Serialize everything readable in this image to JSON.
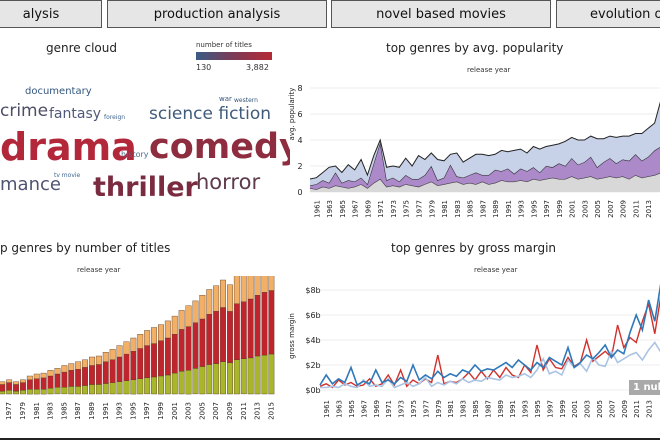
{
  "tabs": [
    "alysis",
    "production analysis",
    "novel based movies",
    "evolution of"
  ],
  "genre_cloud": {
    "title": "genre cloud",
    "legend_title": "number of titles",
    "legend_min": "130",
    "legend_max": "3,882",
    "words": [
      {
        "text": "drama",
        "color": "#b2273a"
      },
      {
        "text": "comedy",
        "color": "#8e2d3f"
      },
      {
        "text": "thriller",
        "color": "#7a2b40"
      },
      {
        "text": "horror",
        "color": "#5e3b4a"
      },
      {
        "text": "science fiction",
        "color": "#3f5a7a"
      },
      {
        "text": "crime",
        "color": "#4d4e66"
      },
      {
        "text": "fantasy",
        "color": "#50597a"
      },
      {
        "text": "mance",
        "color": "#4f5472"
      },
      {
        "text": "documentary",
        "color": "#33577f"
      },
      {
        "text": "history",
        "color": "#4a6a8a"
      },
      {
        "text": "war",
        "color": "#32557a"
      },
      {
        "text": "western",
        "color": "#32557a"
      },
      {
        "text": "foreign",
        "color": "#3e6590"
      },
      {
        "text": "tv movie",
        "color": "#3e6590"
      }
    ]
  },
  "popularity": {
    "title": "top genres by avg. popularity",
    "subtitle": "release year",
    "ylabel": "avg. popularity",
    "y_ticks": [
      "0",
      "2",
      "4",
      "6",
      "8"
    ],
    "x_ticks": [
      "1961",
      "1963",
      "1965",
      "1967",
      "1969",
      "1971",
      "1973",
      "1975",
      "1977",
      "1979",
      "1981",
      "1983",
      "1985",
      "1987",
      "1989",
      "1991",
      "1993",
      "1995",
      "1997",
      "1999",
      "2001",
      "2003",
      "2005",
      "2007",
      "2009",
      "2011",
      "2013"
    ]
  },
  "titles": {
    "title": "p genres by number of titles",
    "subtitle": "release year",
    "x_ticks": [
      "1973",
      "1975",
      "1977",
      "1979",
      "1981",
      "1983",
      "1985",
      "1987",
      "1989",
      "1991",
      "1993",
      "1995",
      "1997",
      "1999",
      "2001",
      "2003",
      "2005",
      "2007",
      "2009",
      "2011",
      "2013",
      "2015"
    ]
  },
  "gross": {
    "title": "top genres by gross margin",
    "subtitle": "release year",
    "ylabel": "gross margin",
    "y_ticks": [
      "$0b",
      "$2b",
      "$4b",
      "$6b",
      "$8b"
    ],
    "x_ticks": [
      "1961",
      "1963",
      "1965",
      "1967",
      "1969",
      "1971",
      "1973",
      "1975",
      "1977",
      "1979",
      "1981",
      "1983",
      "1985",
      "1987",
      "1989",
      "1991",
      "1993",
      "1995",
      "1997",
      "1999",
      "2001",
      "2003",
      "2005",
      "2007",
      "2009",
      "2011",
      "2013"
    ],
    "null_badge": "1 nul"
  },
  "chart_data": [
    {
      "type": "area",
      "title": "top genres by avg. popularity",
      "xlabel": "release year",
      "ylabel": "avg. popularity",
      "x": [
        1960,
        1961,
        1962,
        1963,
        1964,
        1965,
        1966,
        1967,
        1968,
        1969,
        1970,
        1971,
        1972,
        1973,
        1974,
        1975,
        1976,
        1977,
        1978,
        1979,
        1980,
        1981,
        1982,
        1983,
        1984,
        1985,
        1986,
        1987,
        1988,
        1989,
        1990,
        1991,
        1992,
        1993,
        1994,
        1995,
        1996,
        1997,
        1998,
        1999,
        2000,
        2001,
        2002,
        2003,
        2004,
        2005,
        2006,
        2007,
        2008,
        2009,
        2010,
        2011,
        2012,
        2013,
        2014,
        2015
      ],
      "ylim": [
        0,
        8
      ],
      "series": [
        {
          "values": [
            0.3,
            0.2,
            0.4,
            0.3,
            0.5,
            0.4,
            0.3,
            0.4,
            0.6,
            0.3,
            0.7,
            1.0,
            0.4,
            0.5,
            0.4,
            0.6,
            0.5,
            0.4,
            0.6,
            0.8,
            0.5,
            0.6,
            0.7,
            0.8,
            0.6,
            0.7,
            0.6,
            0.8,
            0.6,
            0.7,
            0.9,
            0.8,
            0.8,
            0.9,
            0.8,
            1.0,
            0.9,
            1.0,
            1.1,
            1.0,
            1.0,
            1.2,
            1.0,
            1.1,
            1.2,
            1.0,
            1.1,
            1.2,
            1.1,
            1.2,
            1.0,
            1.3,
            1.1,
            1.2,
            1.3,
            1.5
          ]
        },
        {
          "values": [
            0.2,
            0.4,
            0.5,
            0.4,
            1.0,
            0.3,
            0.6,
            0.4,
            0.5,
            0.3,
            1.5,
            2.8,
            0.5,
            0.6,
            0.4,
            0.7,
            0.5,
            0.6,
            0.7,
            1.2,
            0.4,
            0.5,
            1.4,
            0.4,
            0.5,
            0.6,
            0.9,
            0.5,
            0.7,
            1.0,
            0.7,
            1.0,
            0.6,
            0.9,
            0.8,
            0.9,
            0.6,
            1.0,
            0.8,
            1.2,
            1.0,
            1.4,
            1.1,
            1.2,
            1.5,
            0.9,
            1.2,
            1.4,
            1.1,
            1.3,
            1.4,
            1.6,
            1.3,
            1.5,
            1.9,
            2.0
          ]
        },
        {
          "values": [
            0.5,
            0.5,
            0.6,
            1.2,
            0.5,
            0.8,
            1.2,
            0.9,
            1.4,
            0.7,
            0.6,
            0.2,
            1.0,
            0.9,
            1.1,
            1.3,
            1.0,
            1.8,
            1.2,
            1.0,
            1.6,
            1.3,
            0.8,
            1.8,
            1.2,
            1.3,
            1.4,
            1.6,
            1.5,
            1.2,
            1.6,
            1.3,
            1.8,
            1.5,
            1.4,
            1.6,
            1.8,
            1.5,
            1.7,
            1.5,
            1.9,
            1.6,
            1.9,
            1.7,
            1.6,
            2.2,
            1.8,
            1.7,
            2.0,
            1.8,
            1.9,
            1.6,
            2.1,
            2.2,
            2.1,
            3.6
          ]
        }
      ]
    },
    {
      "type": "bar",
      "title": "p genres by number of titles",
      "xlabel": "release year",
      "categories": [
        1971,
        1972,
        1973,
        1974,
        1975,
        1976,
        1977,
        1978,
        1979,
        1980,
        1981,
        1982,
        1983,
        1984,
        1985,
        1986,
        1987,
        1988,
        1989,
        1990,
        1991,
        1992,
        1993,
        1994,
        1995,
        1996,
        1997,
        1998,
        1999,
        2000,
        2001,
        2002,
        2003,
        2004,
        2005,
        2006,
        2007,
        2008,
        2009,
        2010,
        2011,
        2012,
        2013,
        2014,
        2015
      ],
      "series": [
        {
          "values": [
            2,
            2,
            3,
            2,
            3,
            3,
            4,
            3,
            4,
            5,
            5,
            5,
            6,
            7,
            7,
            8,
            8,
            9,
            10,
            10,
            11,
            12,
            13,
            14,
            15,
            16,
            17,
            18,
            19,
            20,
            22,
            24,
            25,
            27,
            29,
            31,
            32,
            34,
            33,
            36,
            37,
            38,
            40,
            41,
            42
          ]
        },
        {
          "values": [
            4,
            5,
            5,
            6,
            6,
            7,
            8,
            7,
            8,
            10,
            11,
            12,
            13,
            14,
            16,
            17,
            18,
            19,
            20,
            21,
            23,
            24,
            26,
            28,
            30,
            32,
            34,
            35,
            37,
            39,
            41,
            44,
            46,
            48,
            50,
            53,
            55,
            57,
            54,
            59,
            60,
            62,
            64,
            66,
            67
          ]
        },
        {
          "values": [
            1,
            2,
            2,
            2,
            3,
            3,
            3,
            3,
            3,
            4,
            5,
            5,
            6,
            6,
            7,
            7,
            8,
            8,
            9,
            9,
            10,
            11,
            12,
            13,
            14,
            15,
            16,
            17,
            17,
            18,
            19,
            20,
            22,
            23,
            25,
            26,
            27,
            29,
            28,
            30,
            31,
            32,
            34,
            33,
            35
          ]
        }
      ]
    },
    {
      "type": "line",
      "title": "top genres by gross margin",
      "xlabel": "release year",
      "ylabel": "gross margin",
      "x": [
        1960,
        1961,
        1962,
        1963,
        1964,
        1965,
        1966,
        1967,
        1968,
        1969,
        1970,
        1971,
        1972,
        1973,
        1974,
        1975,
        1976,
        1977,
        1978,
        1979,
        1980,
        1981,
        1982,
        1983,
        1984,
        1985,
        1986,
        1987,
        1988,
        1989,
        1990,
        1991,
        1992,
        1993,
        1994,
        1995,
        1996,
        1997,
        1998,
        1999,
        2000,
        2001,
        2002,
        2003,
        2004,
        2005,
        2006,
        2007,
        2008,
        2009,
        2010,
        2011,
        2012,
        2013,
        2014,
        2015
      ],
      "ylim": [
        0,
        9
      ],
      "series": [
        {
          "values": [
            0.3,
            0.5,
            0.2,
            0.8,
            0.4,
            0.6,
            0.3,
            0.4,
            0.9,
            0.3,
            0.5,
            1.2,
            0.4,
            1.6,
            0.3,
            0.8,
            0.5,
            0.9,
            0.6,
            2.8,
            0.5,
            0.7,
            0.6,
            0.9,
            1.4,
            0.8,
            1.5,
            0.9,
            1.6,
            1.0,
            1.8,
            1.2,
            1.0,
            2.0,
            1.4,
            3.6,
            1.6,
            2.5,
            1.8,
            1.7,
            2.6,
            1.9,
            2.2,
            4.0,
            2.3,
            2.7,
            3.1,
            2.6,
            5.2,
            3.4,
            4.2,
            3.8,
            5.5,
            6.9,
            4.5,
            7.6
          ]
        },
        {
          "values": [
            0.2,
            0.2,
            0.3,
            0.2,
            0.5,
            0.3,
            0.2,
            0.8,
            0.3,
            0.4,
            0.3,
            0.9,
            0.2,
            0.4,
            0.6,
            0.3,
            0.5,
            1.0,
            0.3,
            0.6,
            0.4,
            0.7,
            0.5,
            0.9,
            0.6,
            0.8,
            0.7,
            1.0,
            0.9,
            0.8,
            1.2,
            1.0,
            1.1,
            1.3,
            1.0,
            1.6,
            2.5,
            1.3,
            1.5,
            1.2,
            2.4,
            1.8,
            2.1,
            1.5,
            2.6,
            2.0,
            1.9,
            3.1,
            2.2,
            2.5,
            2.8,
            3.0,
            2.4,
            3.2,
            3.8,
            3.0
          ]
        },
        {
          "values": [
            0.4,
            1.2,
            0.5,
            0.9,
            0.6,
            1.8,
            0.4,
            0.7,
            0.5,
            1.6,
            0.6,
            0.8,
            0.5,
            1.0,
            0.7,
            2.0,
            0.8,
            1.2,
            0.9,
            1.5,
            1.0,
            1.3,
            1.1,
            1.6,
            1.4,
            2.0,
            1.5,
            1.7,
            1.6,
            1.9,
            2.2,
            1.8,
            2.4,
            2.0,
            1.6,
            2.2,
            1.8,
            2.6,
            2.3,
            2.0,
            3.4,
            1.8,
            2.2,
            2.8,
            2.5,
            3.0,
            3.6,
            2.6,
            3.2,
            2.9,
            4.6,
            6.0,
            4.8,
            7.2,
            5.5,
            8.6
          ]
        }
      ]
    }
  ]
}
